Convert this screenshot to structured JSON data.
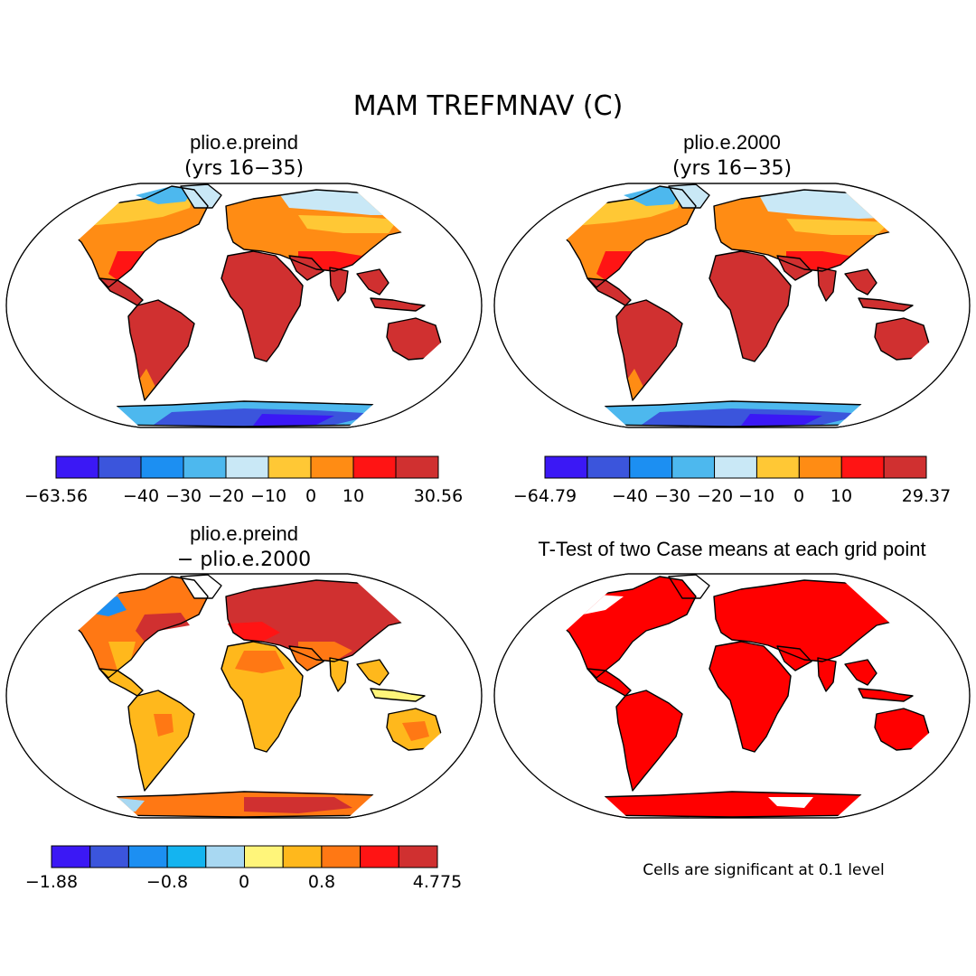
{
  "main_title": "MAM TREFMNAV (C)",
  "panels": [
    {
      "title": "plio.e.preind",
      "subtitle": "(yrs 16−35)",
      "colorbar": {
        "colors": [
          "#3b18f5",
          "#3b55dc",
          "#1c8ff2",
          "#4db8ee",
          "#c9e8f6",
          "#ffc835",
          "#ff8c14",
          "#ff1414",
          "#d03030"
        ],
        "tick_labels": [
          "−63.56",
          "−40",
          "−30",
          "−20",
          "−10",
          "0",
          "10",
          "30.56"
        ]
      }
    },
    {
      "title": "plio.e.2000",
      "subtitle": "(yrs 16−35)",
      "colorbar": {
        "colors": [
          "#3b18f5",
          "#3b55dc",
          "#1c8ff2",
          "#4db8ee",
          "#c9e8f6",
          "#ffc835",
          "#ff8c14",
          "#ff1414",
          "#d03030"
        ],
        "tick_labels": [
          "−64.79",
          "−40",
          "−30",
          "−20",
          "−10",
          "0",
          "10",
          "29.37"
        ]
      }
    },
    {
      "title": "plio.e.preind",
      "subtitle": "− plio.e.2000",
      "colorbar": {
        "colors": [
          "#3b18f5",
          "#3b55dc",
          "#1c8ff2",
          "#14b4f0",
          "#a8d8f2",
          "#fff57a",
          "#ffb81c",
          "#ff7814",
          "#ff1414",
          "#d03030"
        ],
        "tick_labels": [
          "−1.88",
          "−0.8",
          "0",
          "0.8",
          "4.775"
        ]
      }
    },
    {
      "title": "T-Test of two Case means at each grid point",
      "note": "Cells are significant at 0.1 level"
    }
  ]
}
